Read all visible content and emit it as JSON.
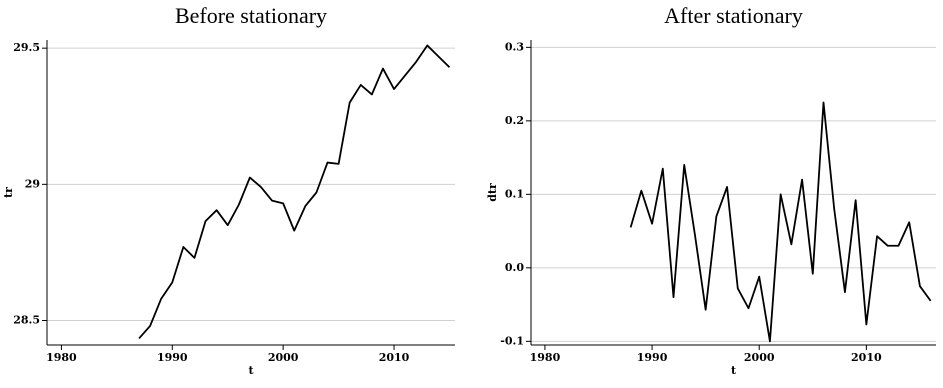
{
  "chart_data": [
    {
      "type": "line",
      "title": "Before stationary",
      "xlabel": "t",
      "ylabel": "tr",
      "x": [
        1987,
        1988,
        1989,
        1990,
        1991,
        1992,
        1993,
        1994,
        1995,
        1996,
        1997,
        1998,
        1999,
        2000,
        2001,
        2002,
        2003,
        2004,
        2005,
        2006,
        2007,
        2008,
        2009,
        2010,
        2011,
        2012,
        2013,
        2014,
        2015
      ],
      "series": [
        {
          "name": "tr",
          "color": "#000000",
          "values": [
            28.434,
            28.48,
            28.58,
            28.64,
            28.77,
            28.73,
            28.865,
            28.905,
            28.85,
            28.925,
            29.025,
            28.99,
            28.94,
            28.93,
            28.83,
            28.92,
            28.97,
            29.08,
            29.075,
            29.3,
            29.365,
            29.33,
            29.425,
            29.35,
            29.4,
            29.45,
            29.51,
            29.47,
            29.43
          ]
        }
      ],
      "xlim": [
        1978.7,
        2015.5
      ],
      "xticks": [
        1980,
        1990,
        2000,
        2010
      ],
      "ylim": [
        28.41,
        29.53
      ],
      "yticks": [
        {
          "value": 28.5,
          "label": "28.5"
        },
        29,
        {
          "value": 29.5,
          "label": "29.5"
        }
      ],
      "grid": true
    },
    {
      "type": "line",
      "title": "After stationary",
      "xlabel": "t",
      "ylabel": "dtr",
      "x": [
        1988,
        1989,
        1990,
        1991,
        1992,
        1993,
        1994,
        1995,
        1996,
        1997,
        1998,
        1999,
        2000,
        2001,
        2002,
        2003,
        2004,
        2005,
        2006,
        2007,
        2008,
        2009,
        2010,
        2011,
        2012,
        2013,
        2014,
        2015,
        2016
      ],
      "series": [
        {
          "name": "dtr",
          "color": "#000000",
          "values": [
            0.055,
            0.105,
            0.06,
            0.135,
            -0.04,
            0.14,
            0.045,
            -0.057,
            0.07,
            0.11,
            -0.028,
            -0.055,
            -0.012,
            -0.1,
            0.1,
            0.032,
            0.12,
            -0.008,
            0.225,
            0.08,
            -0.033,
            0.092,
            -0.077,
            0.043,
            0.03,
            0.03,
            0.062,
            -0.025,
            -0.045
          ]
        }
      ],
      "xlim": [
        1978.7,
        2016.5
      ],
      "xticks": [
        1980,
        1990,
        2000,
        2010
      ],
      "ylim": [
        -0.105,
        0.31
      ],
      "yticks": [
        {
          "value": -0.1,
          "label": "-0.1"
        },
        {
          "value": 0,
          "label": "0.0"
        },
        0.1,
        0.2,
        0.3
      ],
      "grid": true
    }
  ]
}
